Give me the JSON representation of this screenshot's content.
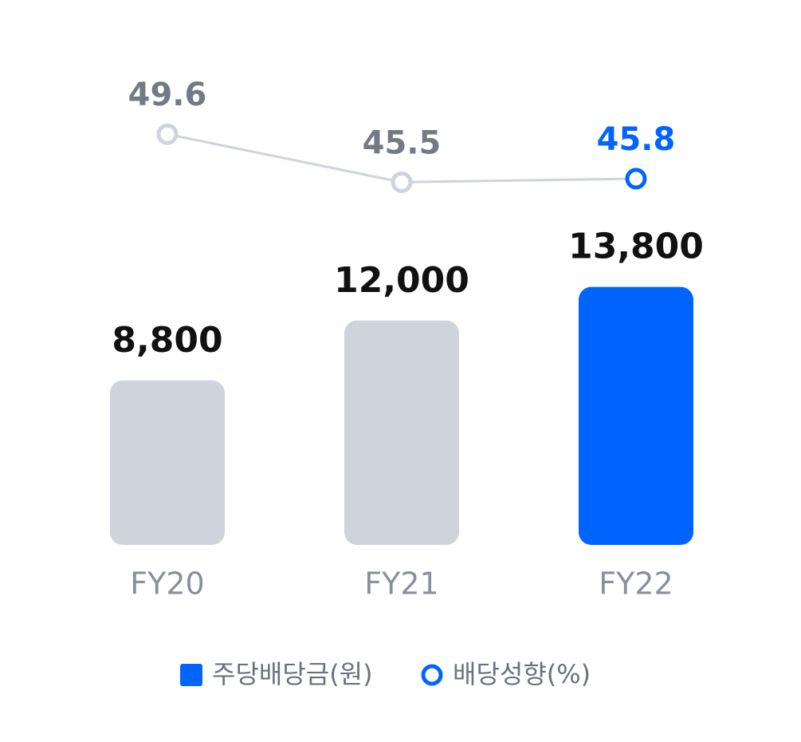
{
  "chart_data": {
    "type": "bar+line",
    "categories": [
      "FY20",
      "FY21",
      "FY22"
    ],
    "series": [
      {
        "name": "주당배당금(원)",
        "type": "bar",
        "color": "#0064ff",
        "colors": [
          "#cfd3dc",
          "#cfd3dc",
          "#0064ff"
        ],
        "values": [
          8800,
          12000,
          13800
        ],
        "value_labels": [
          "8,800",
          "12,000",
          "13,800"
        ],
        "value_label_colors": [
          "#111111",
          "#111111",
          "#111111"
        ]
      },
      {
        "name": "배당성향(%)",
        "type": "line",
        "axis": "y2",
        "color": "#0064ff",
        "line_color": "#cfd3dc",
        "colors": [
          "#cfd3dc",
          "#cfd3dc",
          "#0064ff"
        ],
        "values": [
          49.6,
          45.5,
          45.8
        ],
        "value_label_colors": [
          "#747a85",
          "#747a85",
          "#0064ff"
        ]
      }
    ],
    "ylim": [
      0,
      16000
    ],
    "y2lim": [
      40,
      52
    ],
    "legend": "bottom"
  }
}
